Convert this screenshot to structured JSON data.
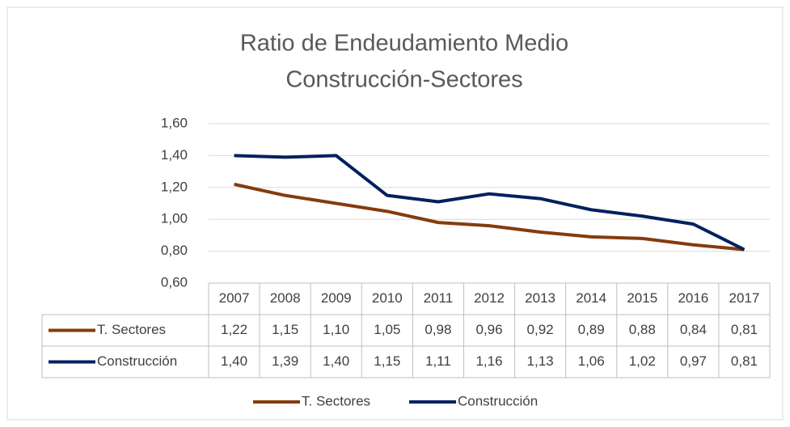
{
  "chart_data": {
    "type": "line",
    "title": "Ratio de Endeudamiento Medio",
    "subtitle": "Construcción-Sectores",
    "categories": [
      "2007",
      "2008",
      "2009",
      "2010",
      "2011",
      "2012",
      "2013",
      "2014",
      "2015",
      "2016",
      "2017"
    ],
    "series": [
      {
        "name": "T. Sectores",
        "color": "#843c0c",
        "values": [
          1.22,
          1.15,
          1.1,
          1.05,
          0.98,
          0.96,
          0.92,
          0.89,
          0.88,
          0.84,
          0.81
        ],
        "value_labels": [
          "1,22",
          "1,15",
          "1,10",
          "1,05",
          "0,98",
          "0,96",
          "0,92",
          "0,89",
          "0,88",
          "0,84",
          "0,81"
        ]
      },
      {
        "name": "Construcción",
        "color": "#002060",
        "values": [
          1.4,
          1.39,
          1.4,
          1.15,
          1.11,
          1.16,
          1.13,
          1.06,
          1.02,
          0.97,
          0.81
        ],
        "value_labels": [
          "1,40",
          "1,39",
          "1,40",
          "1,15",
          "1,11",
          "1,16",
          "1,13",
          "1,06",
          "1,02",
          "0,97",
          "0,81"
        ]
      }
    ],
    "ylim": [
      0.6,
      1.6
    ],
    "yticks": [
      {
        "value": 0.6,
        "label": "0,60"
      },
      {
        "value": 0.8,
        "label": "0,80"
      },
      {
        "value": 1.0,
        "label": "1,00"
      },
      {
        "value": 1.2,
        "label": "1,20"
      },
      {
        "value": 1.4,
        "label": "1,40"
      },
      {
        "value": 1.6,
        "label": "1,60"
      }
    ],
    "grid": true,
    "legend": "bottom"
  }
}
